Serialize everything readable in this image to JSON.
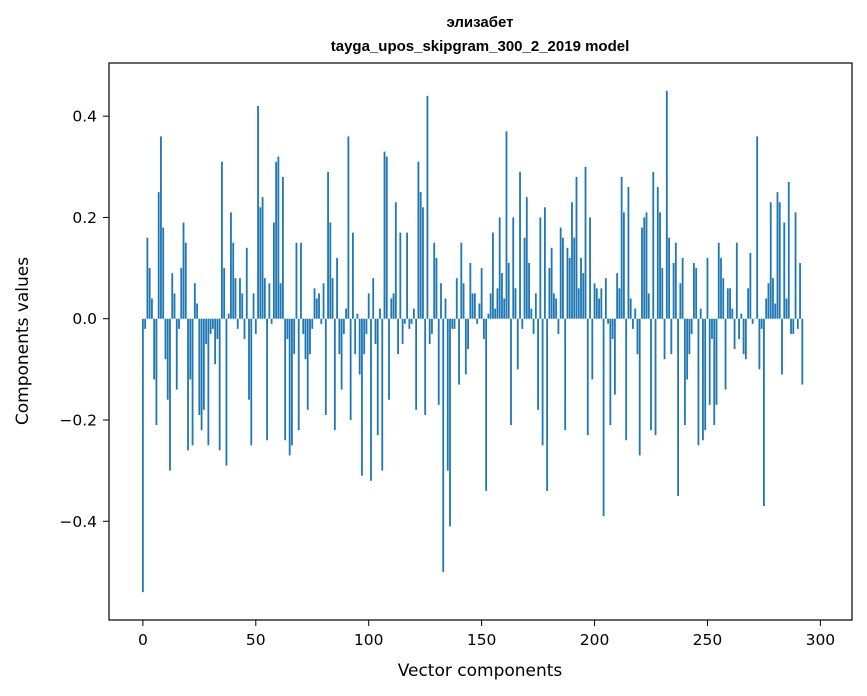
{
  "chart_data": {
    "type": "bar",
    "title": "элизабет",
    "subtitle": "tayga_upos_skipgram_300_2_2019 model",
    "xlabel": "Vector components",
    "ylabel": "Components values",
    "xlim": [
      -15,
      314
    ],
    "ylim": [
      -0.595,
      0.505
    ],
    "xticks": [
      0,
      50,
      100,
      150,
      200,
      250,
      300
    ],
    "yticks": [
      -0.4,
      -0.2,
      0.0,
      0.2,
      0.4
    ],
    "ytick_labels": [
      "−0.4",
      "−0.2",
      "0.0",
      "0.2",
      "0.4"
    ],
    "bar_color": "#1f77b4",
    "grid": false,
    "values": [
      -0.54,
      -0.02,
      0.16,
      0.1,
      0.04,
      -0.12,
      -0.21,
      0.25,
      0.36,
      0.18,
      -0.08,
      -0.16,
      -0.3,
      0.09,
      0.05,
      -0.14,
      -0.02,
      0.1,
      0.19,
      0.15,
      -0.26,
      -0.12,
      -0.25,
      0.07,
      0.03,
      -0.19,
      -0.22,
      -0.18,
      -0.05,
      -0.25,
      -0.03,
      -0.02,
      -0.09,
      -0.04,
      -0.26,
      0.31,
      0.1,
      -0.29,
      0.01,
      0.21,
      0.15,
      0.08,
      -0.02,
      0.08,
      0.05,
      -0.04,
      0.14,
      -0.16,
      -0.25,
      0.05,
      -0.03,
      0.42,
      0.22,
      0.24,
      0.08,
      -0.24,
      0.07,
      -0.01,
      0.19,
      0.31,
      0.32,
      0.07,
      0.28,
      -0.24,
      -0.04,
      -0.27,
      -0.25,
      -0.07,
      0.15,
      -0.22,
      0.15,
      -0.03,
      -0.08,
      -0.18,
      -0.07,
      -0.02,
      0.06,
      0.04,
      0.05,
      -0.01,
      0.07,
      -0.19,
      0.29,
      0.19,
      0.08,
      -0.22,
      0.12,
      -0.07,
      -0.14,
      -0.03,
      0.02,
      0.36,
      -0.2,
      0.17,
      -0.07,
      0.01,
      -0.11,
      -0.31,
      -0.07,
      -0.03,
      0.05,
      -0.32,
      0.08,
      -0.05,
      -0.23,
      0.02,
      -0.3,
      0.33,
      0.32,
      -0.16,
      0.04,
      0.05,
      0.23,
      -0.07,
      0.17,
      -0.05,
      -0.01,
      0.17,
      -0.02,
      -0.01,
      0.02,
      -0.18,
      0.31,
      0.25,
      0.22,
      -0.19,
      0.44,
      -0.05,
      -0.03,
      0.15,
      0.12,
      -0.17,
      0.07,
      -0.5,
      0.04,
      -0.3,
      -0.41,
      -0.02,
      -0.02,
      0.08,
      -0.13,
      0.15,
      0.07,
      -0.11,
      -0.06,
      0.11,
      0.05,
      0.05,
      -0.01,
      0.03,
      0.1,
      -0.04,
      -0.34,
      0.01,
      0.05,
      0.17,
      0.02,
      0.06,
      0.2,
      0.09,
      0.04,
      0.37,
      0.11,
      -0.21,
      0.2,
      0.06,
      -0.1,
      0.29,
      -0.02,
      0.16,
      0.24,
      0.11,
      0.02,
      -0.03,
      0.05,
      -0.18,
      0.2,
      -0.25,
      0.22,
      -0.34,
      0.1,
      0.14,
      0.05,
      0.04,
      -0.03,
      0.18,
      0.16,
      -0.22,
      0.14,
      0.12,
      0.23,
      0.16,
      0.28,
      0.06,
      0.12,
      0.09,
      0.3,
      -0.23,
      0.2,
      -0.12,
      0.07,
      0.06,
      0.04,
      0.06,
      -0.39,
      0.08,
      -0.01,
      -0.21,
      -0.04,
      -0.15,
      0.09,
      0.06,
      0.28,
      0.21,
      -0.24,
      0.26,
      0.04,
      -0.02,
      0.02,
      -0.07,
      -0.27,
      0.18,
      0.2,
      0.21,
      0.05,
      -0.22,
      0.29,
      -0.23,
      0.26,
      0.21,
      0.1,
      -0.08,
      0.45,
      0.16,
      -0.07,
      0.11,
      0.15,
      -0.35,
      0.07,
      0.12,
      -0.21,
      -0.12,
      -0.07,
      -0.03,
      0.11,
      0.1,
      -0.25,
      0.02,
      -0.24,
      -0.22,
      0.12,
      -0.17,
      -0.04,
      -0.21,
      -0.17,
      0.15,
      0.12,
      0.08,
      -0.14,
      0.06,
      0.06,
      0.02,
      -0.06,
      0.15,
      -0.04,
      0.01,
      -0.07,
      -0.08,
      0.06,
      0.13,
      -0.01,
      0.0,
      0.36,
      -0.1,
      -0.02,
      -0.37,
      0.04,
      0.07,
      0.23,
      0.08,
      0.03,
      0.25,
      0.23,
      -0.11,
      0.19,
      0.04,
      0.27,
      -0.03,
      -0.03,
      0.21,
      -0.02,
      0.11,
      -0.13
    ]
  }
}
